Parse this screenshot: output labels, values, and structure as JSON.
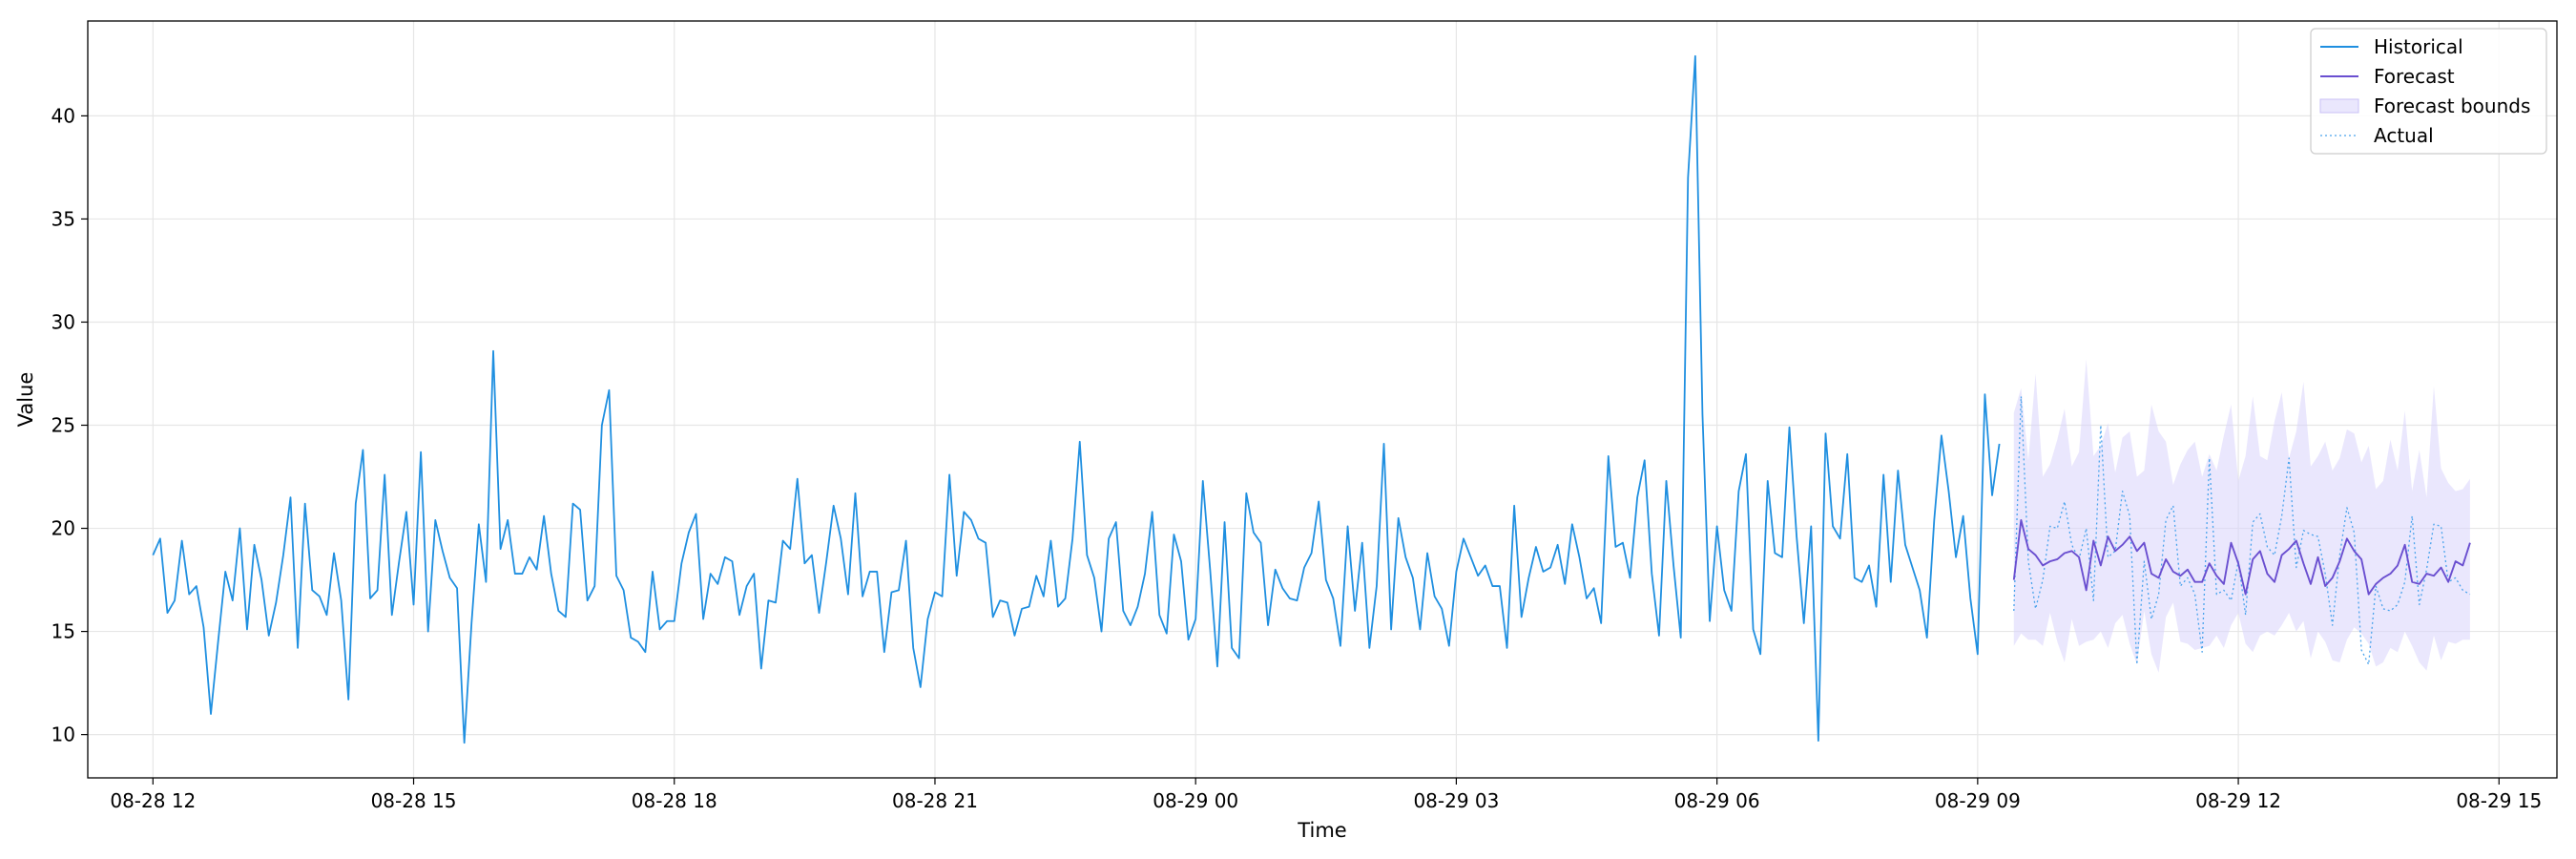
{
  "chart_data": {
    "type": "line",
    "title": "",
    "xlabel": "Time",
    "ylabel": "Value",
    "x_range": [
      "2024-08-28 11:15",
      "2024-08-29 15:40"
    ],
    "ylim": [
      7.9,
      44.6
    ],
    "grid": true,
    "legend": "top-right",
    "x_ticks": [
      {
        "t": "2024-08-28 12:00",
        "label": "08-28 12"
      },
      {
        "t": "2024-08-28 15:00",
        "label": "08-28 15"
      },
      {
        "t": "2024-08-28 18:00",
        "label": "08-28 18"
      },
      {
        "t": "2024-08-28 21:00",
        "label": "08-28 21"
      },
      {
        "t": "2024-08-29 00:00",
        "label": "08-29 00"
      },
      {
        "t": "2024-08-29 03:00",
        "label": "08-29 03"
      },
      {
        "t": "2024-08-29 06:00",
        "label": "08-29 06"
      },
      {
        "t": "2024-08-29 09:00",
        "label": "08-29 09"
      },
      {
        "t": "2024-08-29 12:00",
        "label": "08-29 12"
      },
      {
        "t": "2024-08-29 15:00",
        "label": "08-29 15"
      }
    ],
    "y_ticks": [
      10,
      15,
      20,
      25,
      30,
      35,
      40
    ],
    "series": [
      {
        "name": "Historical",
        "color": "#1f8fe0",
        "style": "solid",
        "x_start": "2024-08-28 12:00",
        "step_minutes": 5,
        "values": [
          18.7,
          19.5,
          15.9,
          16.5,
          19.4,
          16.8,
          17.2,
          15.2,
          11.0,
          14.5,
          17.9,
          16.5,
          20.0,
          15.1,
          19.2,
          17.5,
          14.8,
          16.4,
          18.7,
          21.5,
          14.2,
          21.2,
          17.0,
          16.7,
          15.8,
          18.8,
          16.5,
          11.7,
          21.2,
          23.8,
          16.6,
          17.0,
          22.6,
          15.8,
          18.4,
          20.8,
          16.3,
          23.7,
          15.0,
          20.4,
          18.9,
          17.6,
          17.1,
          9.6,
          15.4,
          20.2,
          17.4,
          28.6,
          19.0,
          20.4,
          17.8,
          17.8,
          18.6,
          18.0,
          20.6,
          17.8,
          16.0,
          15.7,
          21.2,
          20.9,
          16.5,
          17.2,
          25.0,
          26.7,
          17.7,
          17.0,
          14.7,
          14.5,
          14.0,
          17.9,
          15.1,
          15.5,
          15.5,
          18.3,
          19.8,
          20.7,
          15.6,
          17.8,
          17.3,
          18.6,
          18.4,
          15.8,
          17.2,
          17.8,
          13.2,
          16.5,
          16.4,
          19.4,
          19.0,
          22.4,
          18.3,
          18.7,
          15.9,
          18.4,
          21.1,
          19.5,
          16.8,
          21.7,
          16.7,
          17.9,
          17.9,
          14.0,
          16.9,
          17.0,
          19.4,
          14.2,
          12.3,
          15.6,
          16.9,
          16.7,
          22.6,
          17.7,
          20.8,
          20.4,
          19.5,
          19.3,
          15.7,
          16.5,
          16.4,
          14.8,
          16.1,
          16.2,
          17.7,
          16.7,
          19.4,
          16.2,
          16.6,
          19.5,
          24.2,
          18.7,
          17.6,
          15.0,
          19.5,
          20.3,
          16.0,
          15.3,
          16.2,
          17.8,
          20.8,
          15.8,
          14.9,
          19.7,
          18.4,
          14.6,
          15.6,
          22.3,
          18.0,
          13.3,
          20.3,
          14.2,
          13.7,
          21.7,
          19.8,
          19.3,
          15.3,
          18.0,
          17.1,
          16.6,
          16.5,
          18.1,
          18.8,
          21.3,
          17.5,
          16.6,
          14.3,
          20.1,
          16.0,
          19.3,
          14.2,
          17.2,
          24.1,
          15.1,
          20.5,
          18.6,
          17.6,
          15.1,
          18.8,
          16.7,
          16.1,
          14.3,
          17.9,
          19.5,
          18.6,
          17.7,
          18.2,
          17.2,
          17.2,
          14.2,
          21.1,
          15.7,
          17.6,
          19.1,
          17.9,
          18.1,
          19.2,
          17.3,
          20.2,
          18.6,
          16.6,
          17.1,
          15.4,
          23.5,
          19.1,
          19.3,
          17.6,
          21.5,
          23.3,
          17.8,
          14.8,
          22.3,
          18.2,
          14.7,
          37.0,
          42.9,
          25.5,
          15.5,
          20.1,
          17.0,
          16.0,
          21.8,
          23.6,
          15.1,
          13.9,
          22.3,
          18.8,
          18.6,
          24.9,
          19.6,
          15.4,
          20.1,
          9.7,
          24.6,
          20.1,
          19.5,
          23.6,
          17.6,
          17.4,
          18.2,
          16.2,
          22.6,
          17.4,
          22.8,
          19.2,
          18.1,
          17.0,
          14.7,
          20.4,
          24.5,
          21.8,
          18.6,
          20.6,
          16.6,
          13.9,
          26.5,
          21.6,
          24.1
        ]
      },
      {
        "name": "Forecast",
        "color": "#6a4fd0",
        "style": "solid",
        "x_start": "2024-08-29 09:25",
        "step_minutes": 5,
        "values": [
          17.5,
          20.4,
          19.0,
          18.7,
          18.2,
          18.4,
          18.5,
          18.8,
          18.9,
          18.6,
          17.0,
          19.4,
          18.2,
          19.6,
          18.9,
          19.2,
          19.6,
          18.9,
          19.3,
          17.8,
          17.6,
          18.5,
          17.9,
          17.7,
          18.0,
          17.4,
          17.4,
          18.3,
          17.7,
          17.3,
          19.3,
          18.3,
          16.8,
          18.5,
          18.9,
          17.8,
          17.4,
          18.7,
          19.0,
          19.4,
          18.3,
          17.3,
          18.6,
          17.2,
          17.6,
          18.4,
          19.5,
          18.9,
          18.5,
          16.8,
          17.3,
          17.6,
          17.8,
          18.2,
          19.2,
          17.4,
          17.3,
          17.8,
          17.7,
          18.1,
          17.4,
          18.4,
          18.2,
          19.3
        ]
      },
      {
        "name": "Actual",
        "color": "#4aa3ec",
        "style": "dotted",
        "x_start": "2024-08-29 09:25",
        "step_minutes": 5,
        "values": [
          16.0,
          26.4,
          18.4,
          16.1,
          17.5,
          20.1,
          20.0,
          21.3,
          19.2,
          18.5,
          20.0,
          16.5,
          25.0,
          18.6,
          18.9,
          21.8,
          20.6,
          13.4,
          18.4,
          15.6,
          16.8,
          20.4,
          21.1,
          17.2,
          17.6,
          16.8,
          14.0,
          23.4,
          16.8,
          17.0,
          16.5,
          18.4,
          15.8,
          20.3,
          20.7,
          19.1,
          18.7,
          20.6,
          23.4,
          18.1,
          19.9,
          19.7,
          19.6,
          17.8,
          15.3,
          18.7,
          21.0,
          19.8,
          14.1,
          13.4,
          17.2,
          16.1,
          16.0,
          16.3,
          17.4,
          20.6,
          16.3,
          18.0,
          20.2,
          20.1,
          17.4,
          17.6,
          17.0,
          16.8
        ]
      }
    ],
    "bounds": {
      "name": "Forecast bounds",
      "color": "#d9d4fb",
      "x_start": "2024-08-29 09:25",
      "step_minutes": 5,
      "upper": [
        25.6,
        26.8,
        23.3,
        27.5,
        22.5,
        23.1,
        24.3,
        25.8,
        23.0,
        23.7,
        28.2,
        23.5,
        24.0,
        25.1,
        22.7,
        24.4,
        24.7,
        22.5,
        22.8,
        26.0,
        24.7,
        24.2,
        22.1,
        23.1,
        23.8,
        24.2,
        22.5,
        23.6,
        22.8,
        24.5,
        26.0,
        22.3,
        23.5,
        26.4,
        23.5,
        23.3,
        25.2,
        26.6,
        23.4,
        24.7,
        27.1,
        23.0,
        23.5,
        24.2,
        22.8,
        23.4,
        24.8,
        24.6,
        23.2,
        24.0,
        21.9,
        22.3,
        24.3,
        22.8,
        25.7,
        21.8,
        23.8,
        21.5,
        26.9,
        22.9,
        22.2,
        21.8,
        21.9,
        22.4
      ],
      "lower": [
        14.3,
        14.9,
        14.6,
        14.6,
        14.3,
        15.9,
        14.5,
        13.5,
        15.6,
        14.3,
        14.5,
        14.6,
        15.0,
        14.2,
        15.4,
        15.8,
        14.4,
        13.4,
        16.0,
        13.9,
        13.0,
        15.7,
        16.4,
        14.5,
        14.4,
        14.1,
        14.2,
        14.3,
        14.8,
        14.2,
        15.3,
        15.9,
        14.4,
        14.0,
        14.8,
        15.0,
        14.8,
        15.3,
        15.9,
        15.0,
        15.5,
        13.7,
        15.0,
        14.5,
        13.6,
        13.5,
        14.6,
        15.2,
        14.9,
        14.4,
        13.3,
        13.5,
        14.2,
        14.0,
        15.0,
        14.3,
        13.5,
        13.1,
        14.8,
        13.6,
        14.5,
        14.4,
        14.6,
        14.6
      ]
    }
  }
}
